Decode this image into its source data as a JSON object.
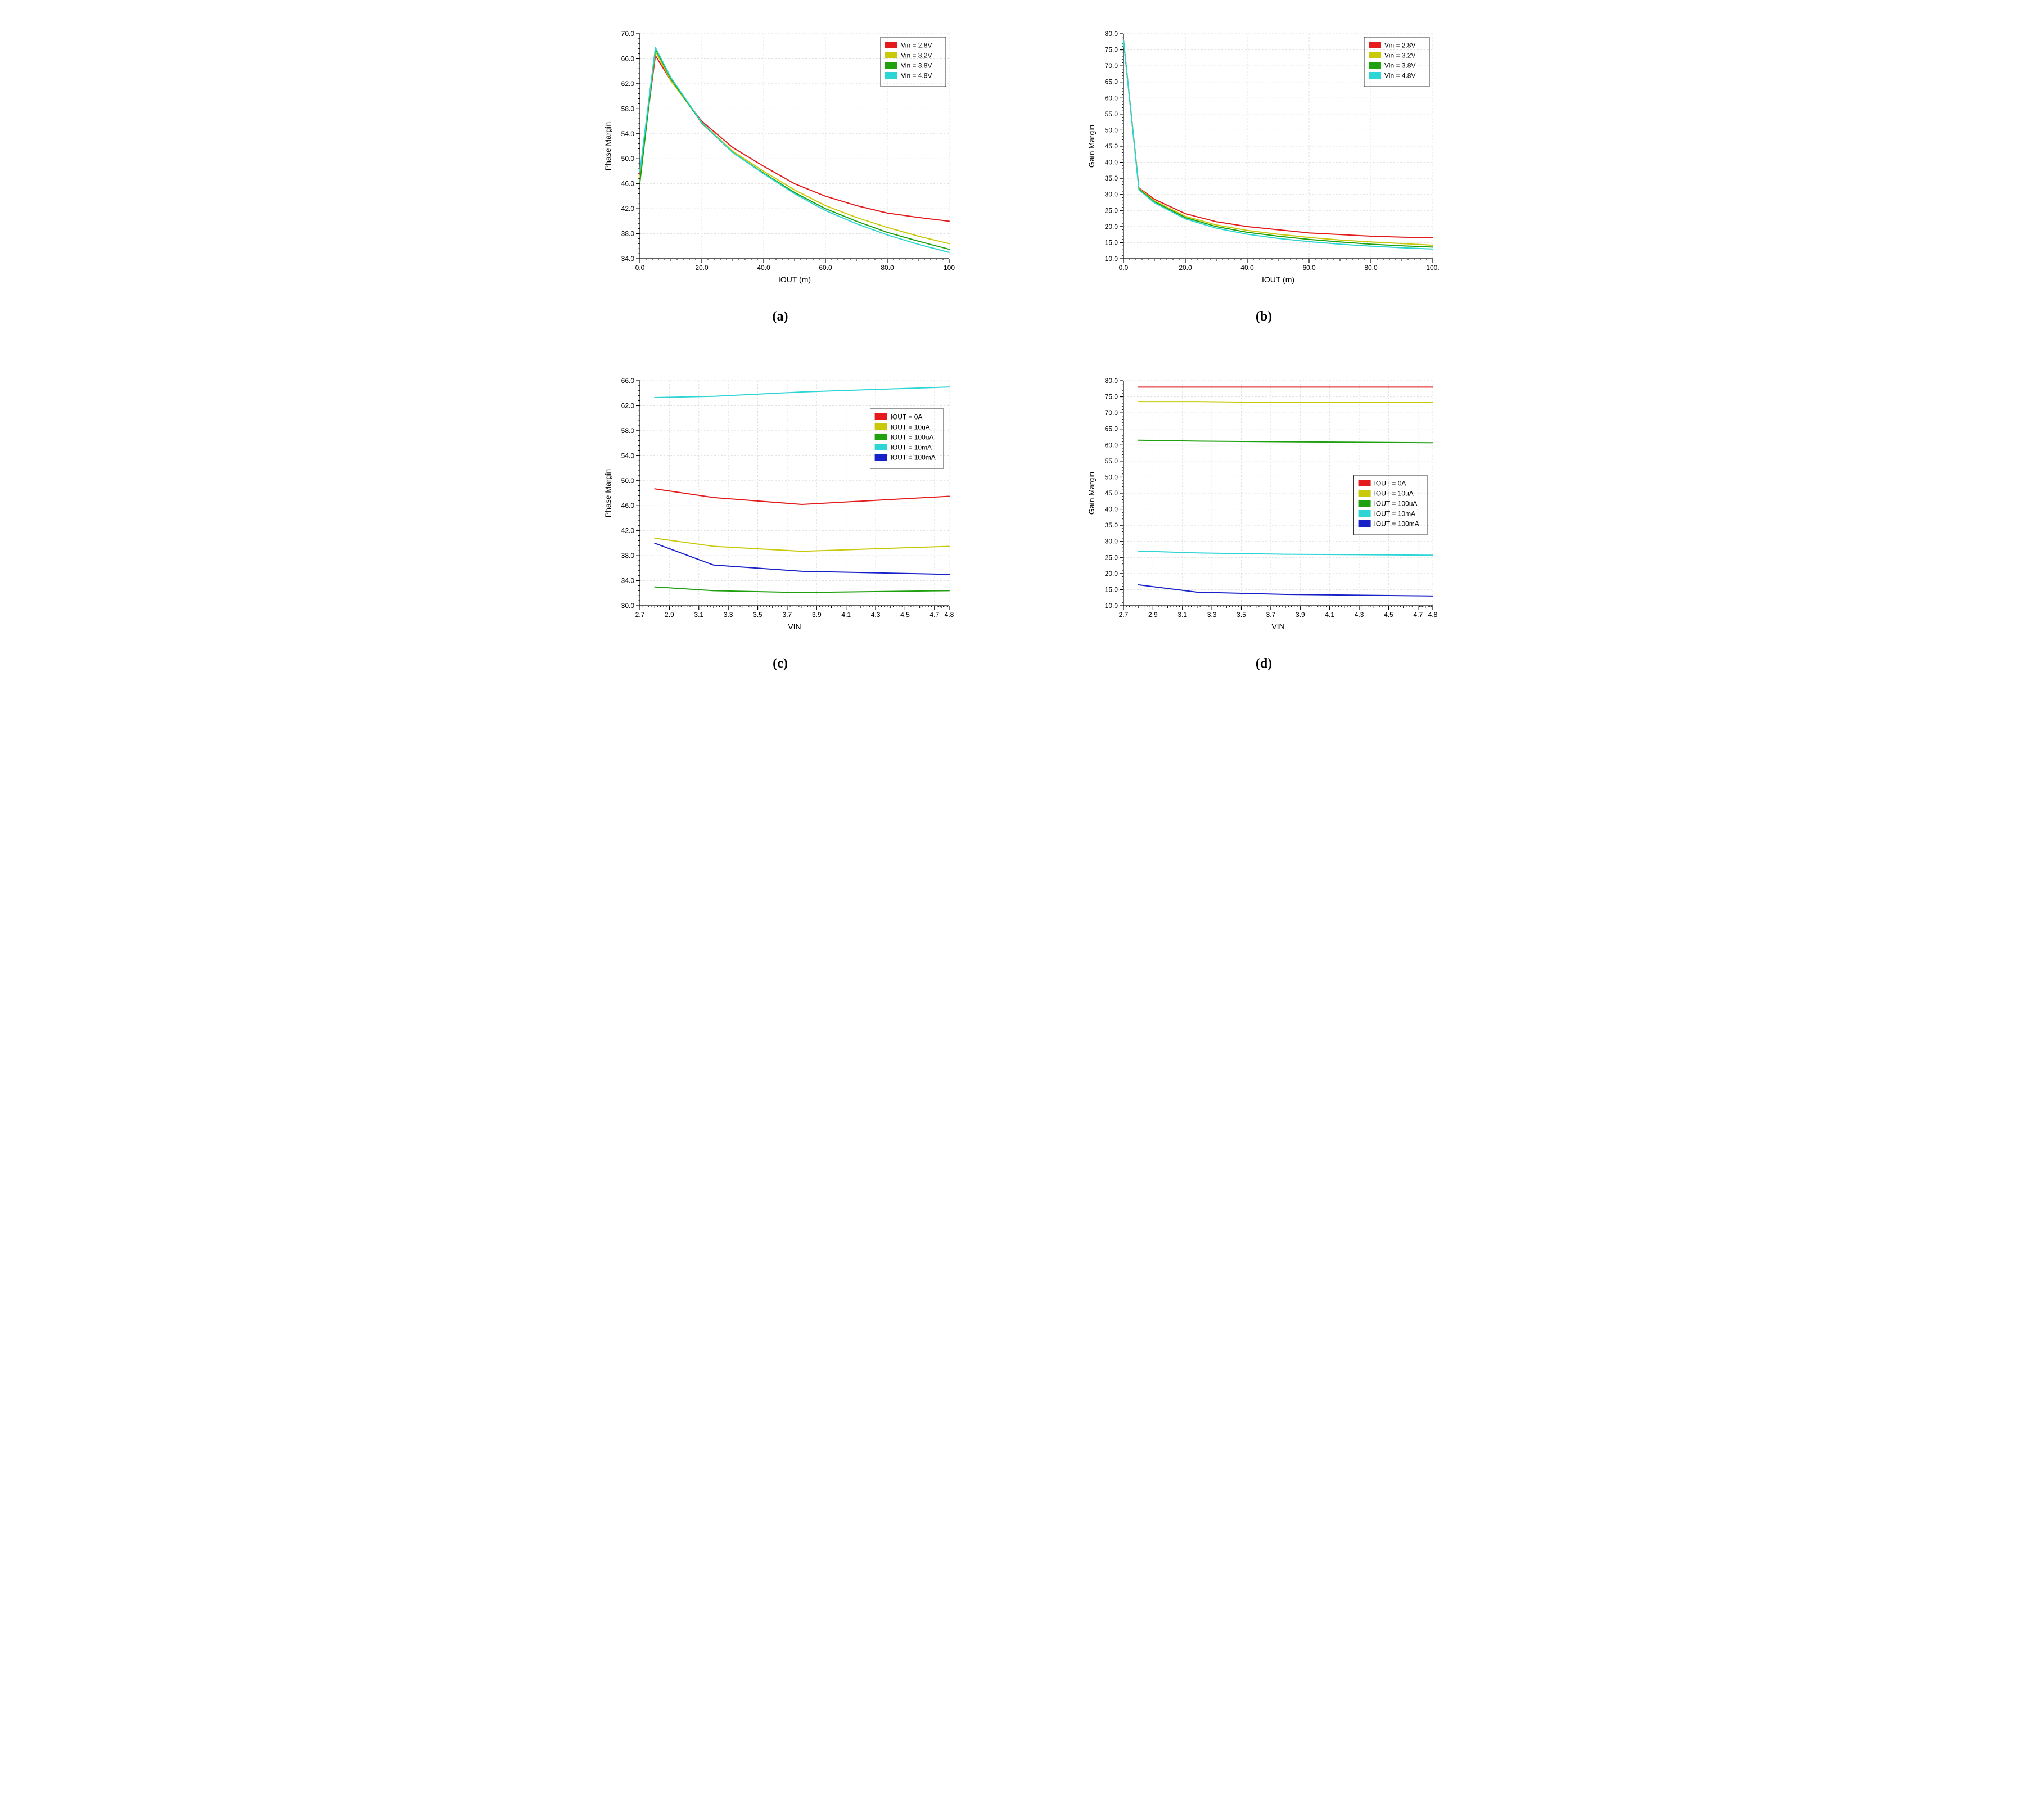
{
  "figure": {
    "background_color": "#ffffff",
    "grid_color": "#e0e0e0",
    "axis_color": "#000000",
    "tick_fontsize": 12,
    "label_fontsize": 14,
    "legend_fontsize": 12,
    "caption_fontsize": 24,
    "line_width": 2,
    "font_family": "Arial"
  },
  "panels": [
    {
      "id": "a",
      "caption": "(a)",
      "type": "line",
      "xlabel": "IOUT (m)",
      "ylabel": "Phase Margin",
      "xlim": [
        0,
        100
      ],
      "ylim": [
        34,
        70
      ],
      "xticks": [
        0,
        20,
        40,
        60,
        80,
        100
      ],
      "xticklabels": [
        "0.0",
        "20.0",
        "40.0",
        "60.0",
        "80.0",
        "100"
      ],
      "yticks": [
        34,
        38,
        42,
        46,
        50,
        54,
        58,
        62,
        66,
        70
      ],
      "yticklabels": [
        "34.0",
        "38.0",
        "42.0",
        "46.0",
        "50.0",
        "54.0",
        "58.0",
        "62.0",
        "66.0",
        "70.0"
      ],
      "legend_pos": "top-right",
      "series": [
        {
          "label": "Vin = 2.8V",
          "color": "#e41a1c",
          "x": [
            0,
            5,
            10,
            20,
            30,
            40,
            50,
            60,
            70,
            80,
            90,
            100
          ],
          "y": [
            47.5,
            66.5,
            62.5,
            56.0,
            51.8,
            48.8,
            46.0,
            44.0,
            42.5,
            41.3,
            40.6,
            40.0
          ]
        },
        {
          "label": "Vin = 3.2V",
          "color": "#c9c90a",
          "x": [
            0,
            5,
            10,
            20,
            30,
            40,
            50,
            60,
            70,
            80,
            90,
            100
          ],
          "y": [
            47.0,
            67.2,
            62.5,
            55.8,
            51.2,
            48.0,
            45.0,
            42.5,
            40.6,
            39.0,
            37.6,
            36.4
          ]
        },
        {
          "label": "Vin = 3.8V",
          "color": "#1fa00f",
          "x": [
            0,
            5,
            10,
            20,
            30,
            40,
            50,
            60,
            70,
            80,
            90,
            100
          ],
          "y": [
            46.2,
            67.6,
            62.8,
            55.7,
            51.0,
            47.7,
            44.6,
            42.0,
            40.0,
            38.2,
            36.8,
            35.5
          ]
        },
        {
          "label": "Vin = 4.8V",
          "color": "#2dd5d5",
          "x": [
            0,
            5,
            10,
            20,
            30,
            40,
            50,
            60,
            70,
            80,
            90,
            100
          ],
          "y": [
            48.0,
            67.8,
            63.0,
            55.8,
            51.0,
            47.6,
            44.4,
            41.7,
            39.6,
            37.8,
            36.3,
            35.0
          ]
        }
      ]
    },
    {
      "id": "b",
      "caption": "(b)",
      "type": "line",
      "xlabel": "IOUT (m)",
      "ylabel": "Gain Margin",
      "xlim": [
        0,
        100
      ],
      "ylim": [
        10,
        80
      ],
      "xticks": [
        0,
        20,
        40,
        60,
        80,
        100
      ],
      "xticklabels": [
        "0.0",
        "20.0",
        "40.0",
        "60.0",
        "80.0",
        "100."
      ],
      "yticks": [
        10,
        15,
        20,
        25,
        30,
        35,
        40,
        45,
        50,
        55,
        60,
        65,
        70,
        75,
        80
      ],
      "yticklabels": [
        "10.0",
        "15.0",
        "20.0",
        "25.0",
        "30.0",
        "35.0",
        "40.0",
        "45.0",
        "50.0",
        "55.0",
        "60.0",
        "65.0",
        "70.0",
        "75.0",
        "80.0"
      ],
      "legend_pos": "top-right",
      "series": [
        {
          "label": "Vin = 2.8V",
          "color": "#e41a1c",
          "x": [
            0,
            5,
            10,
            20,
            30,
            40,
            50,
            60,
            70,
            80,
            90,
            100
          ],
          "y": [
            78.0,
            32.0,
            28.5,
            24.0,
            21.5,
            20.0,
            19.0,
            18.0,
            17.5,
            17.0,
            16.7,
            16.5
          ]
        },
        {
          "label": "Vin = 3.2V",
          "color": "#c9c90a",
          "x": [
            0,
            5,
            10,
            20,
            30,
            40,
            50,
            60,
            70,
            80,
            90,
            100
          ],
          "y": [
            78.0,
            31.8,
            28.0,
            23.2,
            20.5,
            18.8,
            17.6,
            16.6,
            15.8,
            15.2,
            14.7,
            14.2
          ]
        },
        {
          "label": "Vin = 3.8V",
          "color": "#1fa00f",
          "x": [
            0,
            5,
            10,
            20,
            30,
            40,
            50,
            60,
            70,
            80,
            90,
            100
          ],
          "y": [
            78.0,
            31.6,
            27.7,
            22.8,
            20.0,
            18.2,
            17.0,
            16.0,
            15.2,
            14.5,
            14.0,
            13.6
          ]
        },
        {
          "label": "Vin = 4.8V",
          "color": "#2dd5d5",
          "x": [
            0,
            5,
            10,
            20,
            30,
            40,
            50,
            60,
            70,
            80,
            90,
            100
          ],
          "y": [
            78.0,
            31.4,
            27.4,
            22.4,
            19.5,
            17.6,
            16.3,
            15.3,
            14.5,
            13.9,
            13.4,
            13.0
          ]
        }
      ]
    },
    {
      "id": "c",
      "caption": "(c)",
      "type": "line",
      "xlabel": "VIN",
      "ylabel": "Phase Margin",
      "xlim": [
        2.7,
        4.8
      ],
      "ylim": [
        30,
        66
      ],
      "xticks": [
        2.7,
        2.9,
        3.1,
        3.3,
        3.5,
        3.7,
        3.9,
        4.1,
        4.3,
        4.5,
        4.7,
        4.8
      ],
      "xticklabels": [
        "2.7",
        "2.9",
        "3.1",
        "3.3",
        "3.5",
        "3.7",
        "3.9",
        "4.1",
        "4.3",
        "4.5",
        "4.7",
        "4.8"
      ],
      "yticks": [
        30,
        34,
        38,
        42,
        46,
        50,
        54,
        58,
        62,
        66
      ],
      "yticklabels": [
        "30.0",
        "34.0",
        "38.0",
        "42.0",
        "46.0",
        "50.0",
        "54.0",
        "58.0",
        "62.0",
        "66.0"
      ],
      "legend_pos": "upper-right-inset",
      "series": [
        {
          "label": "IOUT = 0A",
          "color": "#e41a1c",
          "x": [
            2.8,
            3.2,
            3.8,
            4.8
          ],
          "y": [
            48.7,
            47.3,
            46.2,
            47.5
          ]
        },
        {
          "label": "IOUT = 10uA",
          "color": "#c9c90a",
          "x": [
            2.8,
            3.2,
            3.8,
            4.8
          ],
          "y": [
            40.8,
            39.5,
            38.7,
            39.5
          ]
        },
        {
          "label": "IOUT = 100uA",
          "color": "#1fa00f",
          "x": [
            2.8,
            3.2,
            3.8,
            4.8
          ],
          "y": [
            33.0,
            32.4,
            32.1,
            32.4
          ]
        },
        {
          "label": "IOUT = 10mA",
          "color": "#2dd5d5",
          "x": [
            2.8,
            3.2,
            3.8,
            4.8
          ],
          "y": [
            63.3,
            63.5,
            64.2,
            65.0
          ]
        },
        {
          "label": "IOUT = 100mA",
          "color": "#1820c8",
          "x": [
            2.8,
            3.2,
            3.8,
            4.8
          ],
          "y": [
            40.0,
            36.5,
            35.5,
            35.0
          ]
        }
      ]
    },
    {
      "id": "d",
      "caption": "(d)",
      "type": "line",
      "xlabel": "VIN",
      "ylabel": "Gain Margin",
      "xlim": [
        2.7,
        4.8
      ],
      "ylim": [
        10,
        80
      ],
      "xticks": [
        2.7,
        2.9,
        3.1,
        3.3,
        3.5,
        3.7,
        3.9,
        4.1,
        4.3,
        4.5,
        4.7,
        4.8
      ],
      "xticklabels": [
        "2.7",
        "2.9",
        "3.1",
        "3.3",
        "3.5",
        "3.7",
        "3.9",
        "4.1",
        "4.3",
        "4.5",
        "4.7",
        "4.8"
      ],
      "yticks": [
        10,
        15,
        20,
        25,
        30,
        35,
        40,
        45,
        50,
        55,
        60,
        65,
        70,
        75,
        80
      ],
      "yticklabels": [
        "10.0",
        "15.0",
        "20.0",
        "25.0",
        "30.0",
        "35.0",
        "40.0",
        "45.0",
        "50.0",
        "55.0",
        "60.0",
        "65.0",
        "70.0",
        "75.0",
        "80.0"
      ],
      "legend_pos": "mid-right-inset",
      "series": [
        {
          "label": "IOUT = 0A",
          "color": "#e41a1c",
          "x": [
            2.8,
            3.2,
            3.8,
            4.8
          ],
          "y": [
            78.0,
            78.0,
            78.0,
            78.0
          ]
        },
        {
          "label": "IOUT = 10uA",
          "color": "#c9c90a",
          "x": [
            2.8,
            3.2,
            3.8,
            4.8
          ],
          "y": [
            73.5,
            73.5,
            73.2,
            73.2
          ]
        },
        {
          "label": "IOUT = 100uA",
          "color": "#1fa00f",
          "x": [
            2.8,
            3.2,
            3.8,
            4.8
          ],
          "y": [
            61.5,
            61.2,
            61.0,
            60.7
          ]
        },
        {
          "label": "IOUT = 10mA",
          "color": "#2dd5d5",
          "x": [
            2.8,
            3.2,
            3.8,
            4.8
          ],
          "y": [
            27.0,
            26.4,
            26.0,
            25.7
          ]
        },
        {
          "label": "IOUT = 100mA",
          "color": "#1820c8",
          "x": [
            2.8,
            3.2,
            3.8,
            4.8
          ],
          "y": [
            16.5,
            14.2,
            13.5,
            13.0
          ]
        }
      ]
    }
  ]
}
